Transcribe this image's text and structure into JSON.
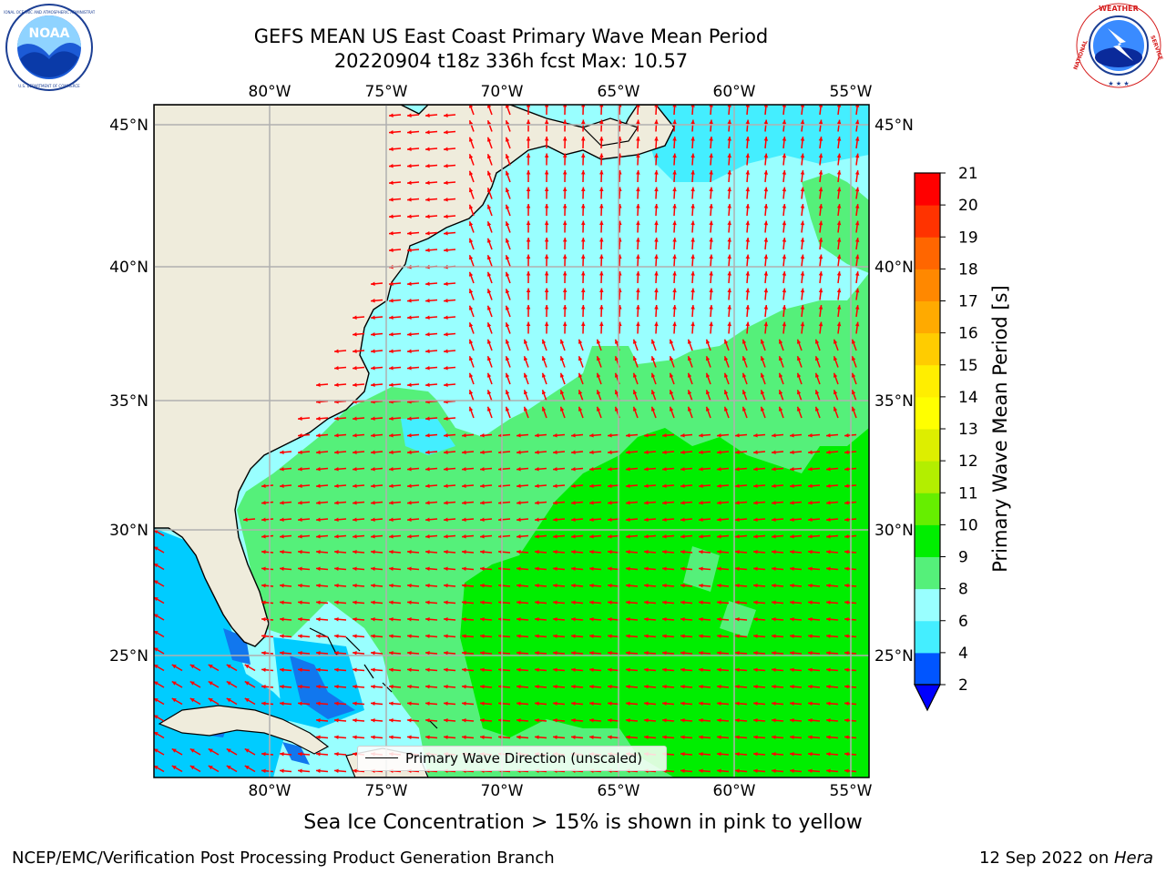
{
  "header": {
    "title_line1": "GEFS MEAN US East Coast Primary Wave Mean Period",
    "title_line2": "20220904 t18z 336h fcst   Max: 10.57"
  },
  "logos": {
    "left": {
      "name": "NOAA",
      "text": "NOAA",
      "ring_text": "NATIONAL OCEANIC AND ATMOSPHERIC ADMINISTRATION · U.S. DEPARTMENT OF COMMERCE"
    },
    "right": {
      "name": "National Weather Service",
      "ring_text": "NATIONAL WEATHER SERVICE"
    }
  },
  "map": {
    "lon_ticks": [
      "80°W",
      "75°W",
      "70°W",
      "65°W",
      "60°W",
      "55°W"
    ],
    "lat_ticks": [
      "45°N",
      "40°N",
      "35°N",
      "30°N",
      "25°N"
    ],
    "legend_label": "Primary Wave Direction (unscaled)",
    "arrow_color": "#ff0000",
    "land_color": "#efecdc",
    "dominant_direction": "arrows point generally toward the west/southwest and north"
  },
  "colorbar": {
    "label": "Primary Wave Mean Period [s]",
    "ticks": [
      "2",
      "4",
      "6",
      "8",
      "9",
      "10",
      "11",
      "12",
      "13",
      "14",
      "15",
      "16",
      "17",
      "18",
      "19",
      "20",
      "21"
    ],
    "colors": [
      "#0055ff",
      "#00ccff",
      "#44eeff",
      "#99ffff",
      "#55f07a",
      "#00ee00",
      "#66ee00",
      "#b3ee00",
      "#ddee00",
      "#ffff00",
      "#ffee00",
      "#ffcc00",
      "#ffaa00",
      "#ff8800",
      "#ff6600",
      "#ff3300",
      "#ff0000"
    ],
    "under_color": "#0000ff"
  },
  "caption": "Sea Ice Concentration > 15% is shown in pink to yellow",
  "footer": {
    "left": "NCEP/EMC/Verification Post Processing Product Generation Branch",
    "date": "12 Sep 2022 on ",
    "machine": "Hera"
  }
}
